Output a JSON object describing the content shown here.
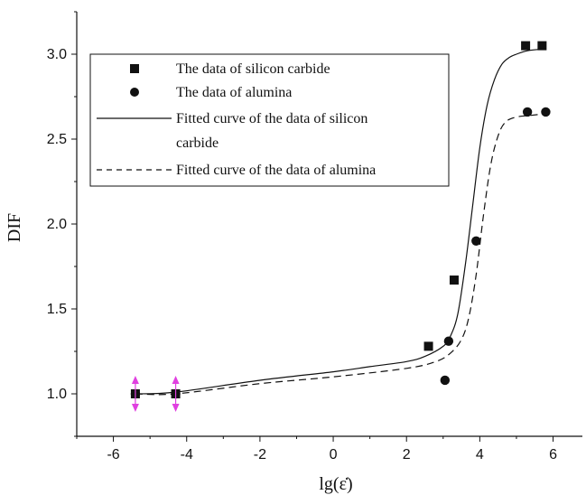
{
  "chart_data": {
    "type": "scatter",
    "xlabel": "lg(ε̇)",
    "ylabel": "DIF",
    "xlim": [
      -7,
      6.8
    ],
    "ylim": [
      0.75,
      3.25
    ],
    "xticks": [
      -6,
      -4,
      -2,
      0,
      2,
      4,
      6
    ],
    "yticks": [
      1.0,
      1.5,
      2.0,
      2.5,
      3.0
    ],
    "xtick_labels": [
      "-6",
      "-4",
      "-2",
      "0",
      "2",
      "4",
      "6"
    ],
    "ytick_labels": [
      "1.0",
      "1.5",
      "2.0",
      "2.5",
      "3.0"
    ],
    "grid": false,
    "legend_position": "top-left",
    "legend": [
      {
        "label": "The data of silicon carbide",
        "marker": "square"
      },
      {
        "label": "The data of alumina",
        "marker": "circle"
      },
      {
        "label_lines": [
          "Fitted curve of the data of  silicon",
          "carbide"
        ],
        "line": "solid"
      },
      {
        "label": "Fitted curve of the data of alumina",
        "line": "dashed"
      }
    ],
    "series": [
      {
        "name": "The data of silicon carbide",
        "kind": "scatter",
        "marker": "square",
        "points": [
          [
            -5.4,
            1.0
          ],
          [
            -4.3,
            1.0
          ],
          [
            2.6,
            1.28
          ],
          [
            3.3,
            1.67
          ],
          [
            5.25,
            3.05
          ],
          [
            5.7,
            3.05
          ]
        ]
      },
      {
        "name": "The data of alumina",
        "kind": "scatter",
        "marker": "circle",
        "points": [
          [
            -5.4,
            1.0
          ],
          [
            -4.3,
            1.0
          ],
          [
            3.05,
            1.08
          ],
          [
            3.15,
            1.31
          ],
          [
            3.9,
            1.9
          ],
          [
            5.3,
            2.66
          ],
          [
            5.8,
            2.66
          ]
        ]
      },
      {
        "name": "Fitted curve of the data of  silicon carbide",
        "kind": "line",
        "style": "solid",
        "points": [
          [
            -5.4,
            1.0
          ],
          [
            -4.3,
            1.01
          ],
          [
            -2,
            1.08
          ],
          [
            0,
            1.13
          ],
          [
            1,
            1.16
          ],
          [
            2,
            1.19
          ],
          [
            2.5,
            1.22
          ],
          [
            3,
            1.28
          ],
          [
            3.2,
            1.34
          ],
          [
            3.4,
            1.47
          ],
          [
            3.6,
            1.75
          ],
          [
            3.8,
            2.1
          ],
          [
            4.0,
            2.45
          ],
          [
            4.2,
            2.7
          ],
          [
            4.4,
            2.85
          ],
          [
            4.6,
            2.94
          ],
          [
            4.8,
            2.98
          ],
          [
            5.0,
            3.0
          ],
          [
            5.3,
            3.02
          ],
          [
            5.7,
            3.03
          ]
        ]
      },
      {
        "name": "Fitted curve of the data of alumina",
        "kind": "line",
        "style": "dashed",
        "points": [
          [
            -5.4,
            1.0
          ],
          [
            -4.3,
            1.0
          ],
          [
            -2,
            1.06
          ],
          [
            0,
            1.1
          ],
          [
            2,
            1.15
          ],
          [
            2.8,
            1.19
          ],
          [
            3.2,
            1.24
          ],
          [
            3.5,
            1.32
          ],
          [
            3.7,
            1.45
          ],
          [
            3.9,
            1.7
          ],
          [
            4.1,
            2.05
          ],
          [
            4.3,
            2.35
          ],
          [
            4.5,
            2.52
          ],
          [
            4.7,
            2.6
          ],
          [
            5.0,
            2.63
          ],
          [
            5.4,
            2.64
          ],
          [
            5.8,
            2.65
          ]
        ]
      }
    ],
    "error_markers": [
      {
        "x": -5.4,
        "y": 1.0
      },
      {
        "x": -4.3,
        "y": 1.0
      }
    ],
    "colors": {
      "data": "#111111",
      "error_markers": "#e040e0"
    }
  }
}
